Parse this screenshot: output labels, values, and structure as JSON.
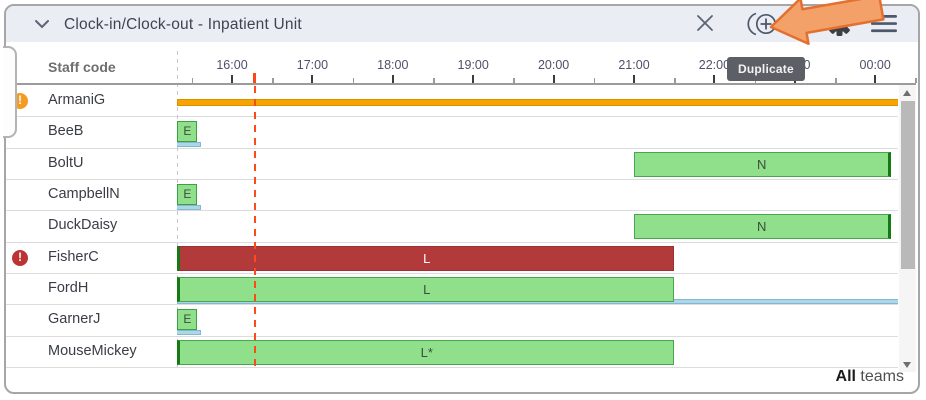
{
  "window": {
    "title": "Clock-in/Clock-out - Inpatient Unit",
    "tooltip": "Duplicate",
    "icons": [
      "chevron-down",
      "close",
      "duplicate",
      "gear",
      "hamburger"
    ]
  },
  "grid": {
    "staff_code_header": "Staff code",
    "footer": {
      "all_label": "All",
      "teams_label": "teams"
    }
  },
  "chart_data": {
    "type": "gantt",
    "title": "Clock-in/Clock-out - Inpatient Unit",
    "time_axis": {
      "hour_labels": [
        "16:00",
        "17:00",
        "18:00",
        "19:00",
        "20:00",
        "21:00",
        "22:00",
        "23:00",
        "00:00"
      ],
      "hours": [
        16,
        17,
        18,
        19,
        20,
        21,
        22,
        23,
        24
      ],
      "minor_tick_every_hours": 0.5,
      "visible_start_hour": 15.32,
      "visible_end_hour": 24.55
    },
    "current_time_hour": 16.28,
    "rows": [
      {
        "staff": "ArmaniG",
        "alert": "warning",
        "shifts": [
          {
            "style": "orange-line",
            "label": "",
            "start": 15.32,
            "end": 24.3
          }
        ]
      },
      {
        "staff": "BeeB",
        "alert": null,
        "shifts": [
          {
            "style": "green-small",
            "label": "E",
            "start": 15.32,
            "end": 15.57
          }
        ],
        "actuals": [
          {
            "start": 15.29,
            "end": 15.62
          }
        ]
      },
      {
        "staff": "BoltU",
        "alert": null,
        "shifts": [
          {
            "style": "green",
            "label": "N",
            "start": 21.0,
            "end": 24.2,
            "edge": "right"
          }
        ]
      },
      {
        "staff": "CampbellN",
        "alert": null,
        "shifts": [
          {
            "style": "green-small",
            "label": "E",
            "start": 15.32,
            "end": 15.57
          }
        ],
        "actuals": [
          {
            "start": 15.29,
            "end": 15.62
          }
        ]
      },
      {
        "staff": "DuckDaisy",
        "alert": null,
        "shifts": [
          {
            "style": "green",
            "label": "N",
            "start": 21.0,
            "end": 24.2,
            "edge": "right"
          }
        ]
      },
      {
        "staff": "FisherC",
        "alert": "error",
        "shifts": [
          {
            "style": "red",
            "label": "L",
            "start": 15.32,
            "end": 21.5,
            "edge": "left"
          }
        ]
      },
      {
        "staff": "FordH",
        "alert": null,
        "shifts": [
          {
            "style": "green",
            "label": "L",
            "start": 15.32,
            "end": 21.5,
            "edge": "left"
          }
        ],
        "actuals": [
          {
            "start": 15.32,
            "end": 24.3
          }
        ]
      },
      {
        "staff": "GarnerJ",
        "alert": null,
        "shifts": [
          {
            "style": "green-small",
            "label": "E",
            "start": 15.32,
            "end": 15.57
          }
        ],
        "actuals": [
          {
            "start": 15.29,
            "end": 15.62
          }
        ]
      },
      {
        "staff": "MouseMickey",
        "alert": null,
        "shifts": [
          {
            "style": "green",
            "label": "L*",
            "start": 15.32,
            "end": 21.5,
            "edge": "left"
          }
        ]
      }
    ],
    "colors": {
      "shift_green": "#90df8b",
      "shift_green_border": "#4aa64e",
      "shift_red": "#b23a3a",
      "shift_red_border": "#993131",
      "overtime_orange": "#f7a300",
      "overtime_orange_border": "#d98f00",
      "actual_blue": "#abd7e8",
      "actual_blue_border": "#84b8d0",
      "clock_edge_green": "#157a15",
      "current_time_red": "#fc4a1a",
      "alert_warning": "#f59b23",
      "alert_error": "#bb3431"
    },
    "legend_note": "All teams"
  }
}
